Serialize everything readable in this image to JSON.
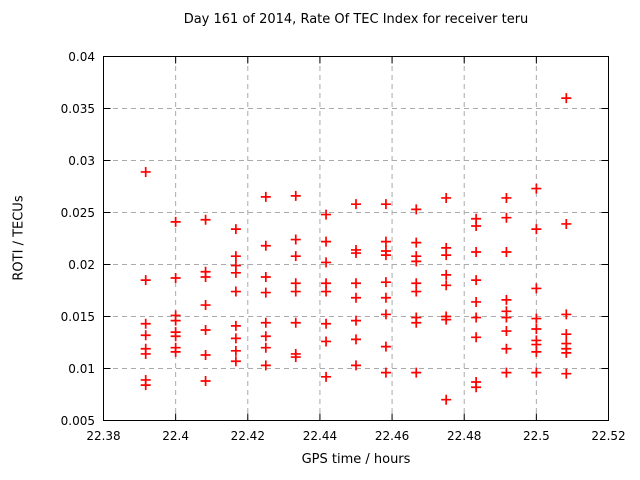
{
  "chart_data": {
    "type": "scatter",
    "title": "Day 161 of 2014, Rate Of TEC Index for receiver teru",
    "xlabel": "GPS time / hours",
    "ylabel": "ROTI / TECUs",
    "xlim": [
      22.38,
      22.52
    ],
    "ylim": [
      0.005,
      0.04
    ],
    "xtick_values": [
      22.38,
      22.4,
      22.42,
      22.44,
      22.46,
      22.48,
      22.5,
      22.52
    ],
    "xtick_labels": [
      "22.38",
      "22.4",
      "22.42",
      "22.44",
      "22.46",
      "22.48",
      "22.5",
      "22.52"
    ],
    "ytick_values": [
      0.005,
      0.01,
      0.015,
      0.02,
      0.025,
      0.03,
      0.035,
      0.04
    ],
    "ytick_labels": [
      "0.005",
      "0.01",
      "0.015",
      "0.02",
      "0.025",
      "0.03",
      "0.035",
      "0.04"
    ],
    "grid": true,
    "legend": "none",
    "marker": {
      "shape": "plus",
      "color": "#ff0000"
    },
    "grid_color": "#aaaaaa",
    "border_color": "#000000",
    "series": [
      {
        "name": "ROTI",
        "points": [
          [
            22.3917,
            0.0289
          ],
          [
            22.3917,
            0.0185
          ],
          [
            22.3917,
            0.0143
          ],
          [
            22.3917,
            0.0132
          ],
          [
            22.3917,
            0.0119
          ],
          [
            22.3917,
            0.0114
          ],
          [
            22.3917,
            0.0089
          ],
          [
            22.3917,
            0.0084
          ],
          [
            22.4,
            0.0241
          ],
          [
            22.4,
            0.0187
          ],
          [
            22.4,
            0.0151
          ],
          [
            22.4,
            0.0146
          ],
          [
            22.4,
            0.0135
          ],
          [
            22.4,
            0.0131
          ],
          [
            22.4,
            0.012
          ],
          [
            22.4,
            0.0116
          ],
          [
            22.4083,
            0.0243
          ],
          [
            22.4083,
            0.0193
          ],
          [
            22.4083,
            0.0188
          ],
          [
            22.4083,
            0.0161
          ],
          [
            22.4083,
            0.0137
          ],
          [
            22.4083,
            0.0113
          ],
          [
            22.4083,
            0.0088
          ],
          [
            22.4167,
            0.0234
          ],
          [
            22.4167,
            0.0208
          ],
          [
            22.4167,
            0.0199
          ],
          [
            22.4167,
            0.0192
          ],
          [
            22.4167,
            0.0174
          ],
          [
            22.4167,
            0.0141
          ],
          [
            22.4167,
            0.0129
          ],
          [
            22.4167,
            0.0117
          ],
          [
            22.4167,
            0.0107
          ],
          [
            22.425,
            0.0265
          ],
          [
            22.425,
            0.0218
          ],
          [
            22.425,
            0.0188
          ],
          [
            22.425,
            0.0173
          ],
          [
            22.425,
            0.0144
          ],
          [
            22.425,
            0.0131
          ],
          [
            22.425,
            0.012
          ],
          [
            22.425,
            0.0103
          ],
          [
            22.4333,
            0.0266
          ],
          [
            22.4333,
            0.0224
          ],
          [
            22.4333,
            0.0208
          ],
          [
            22.4333,
            0.0182
          ],
          [
            22.4333,
            0.0174
          ],
          [
            22.4333,
            0.0144
          ],
          [
            22.4333,
            0.0114
          ],
          [
            22.4333,
            0.0111
          ],
          [
            22.4417,
            0.0248
          ],
          [
            22.4417,
            0.0222
          ],
          [
            22.4417,
            0.0202
          ],
          [
            22.4417,
            0.0182
          ],
          [
            22.4417,
            0.0174
          ],
          [
            22.4417,
            0.0143
          ],
          [
            22.4417,
            0.0126
          ],
          [
            22.4417,
            0.0092
          ],
          [
            22.45,
            0.0258
          ],
          [
            22.45,
            0.0214
          ],
          [
            22.45,
            0.0211
          ],
          [
            22.45,
            0.0182
          ],
          [
            22.45,
            0.0168
          ],
          [
            22.45,
            0.0146
          ],
          [
            22.45,
            0.0128
          ],
          [
            22.45,
            0.0103
          ],
          [
            22.4583,
            0.0258
          ],
          [
            22.4583,
            0.0222
          ],
          [
            22.4583,
            0.0213
          ],
          [
            22.4583,
            0.0209
          ],
          [
            22.4583,
            0.0183
          ],
          [
            22.4583,
            0.0168
          ],
          [
            22.4583,
            0.0152
          ],
          [
            22.4583,
            0.0121
          ],
          [
            22.4583,
            0.0096
          ],
          [
            22.4667,
            0.0253
          ],
          [
            22.4667,
            0.0221
          ],
          [
            22.4667,
            0.0208
          ],
          [
            22.4667,
            0.0203
          ],
          [
            22.4667,
            0.0182
          ],
          [
            22.4667,
            0.0174
          ],
          [
            22.4667,
            0.0149
          ],
          [
            22.4667,
            0.0144
          ],
          [
            22.4667,
            0.0096
          ],
          [
            22.475,
            0.0264
          ],
          [
            22.475,
            0.0216
          ],
          [
            22.475,
            0.0209
          ],
          [
            22.475,
            0.019
          ],
          [
            22.475,
            0.018
          ],
          [
            22.475,
            0.015
          ],
          [
            22.475,
            0.0147
          ],
          [
            22.475,
            0.007
          ],
          [
            22.4833,
            0.0244
          ],
          [
            22.4833,
            0.0237
          ],
          [
            22.4833,
            0.0212
          ],
          [
            22.4833,
            0.0185
          ],
          [
            22.4833,
            0.0164
          ],
          [
            22.4833,
            0.0149
          ],
          [
            22.4833,
            0.013
          ],
          [
            22.4833,
            0.0087
          ],
          [
            22.4833,
            0.0082
          ],
          [
            22.4917,
            0.0264
          ],
          [
            22.4917,
            0.0245
          ],
          [
            22.4917,
            0.0212
          ],
          [
            22.4917,
            0.0166
          ],
          [
            22.4917,
            0.0155
          ],
          [
            22.4917,
            0.0149
          ],
          [
            22.4917,
            0.0136
          ],
          [
            22.4917,
            0.0119
          ],
          [
            22.4917,
            0.0096
          ],
          [
            22.5,
            0.0273
          ],
          [
            22.5,
            0.0234
          ],
          [
            22.5,
            0.0177
          ],
          [
            22.5,
            0.0148
          ],
          [
            22.5,
            0.0138
          ],
          [
            22.5,
            0.0127
          ],
          [
            22.5,
            0.0123
          ],
          [
            22.5,
            0.0116
          ],
          [
            22.5,
            0.0096
          ],
          [
            22.5083,
            0.036
          ],
          [
            22.5083,
            0.0239
          ],
          [
            22.5083,
            0.0152
          ],
          [
            22.5083,
            0.0133
          ],
          [
            22.5083,
            0.0124
          ],
          [
            22.5083,
            0.0119
          ],
          [
            22.5083,
            0.0115
          ],
          [
            22.5083,
            0.0095
          ]
        ]
      }
    ]
  }
}
